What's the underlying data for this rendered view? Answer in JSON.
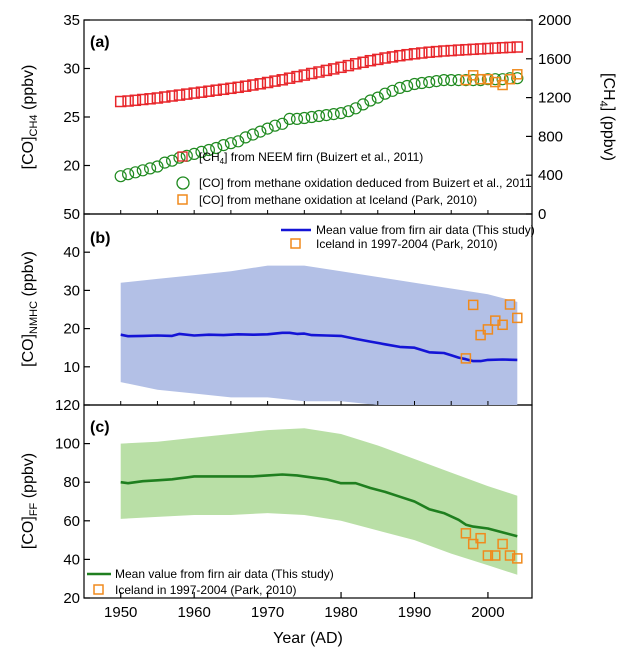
{
  "colors": {
    "ch4": "#e8262b",
    "co_oxidation": "#1f8a1f",
    "iceland": "#f08a1d",
    "nmhc_line": "#1414d6",
    "nmhc_band": "#b3c0e6",
    "ff_line": "#1f7f1f",
    "ff_band": "#b9dfa6"
  },
  "chart_data": [
    {
      "type": "scatter",
      "panel": "(a)",
      "ylabel": "[CO]CH4 (ppbv)",
      "ylabel_main": "[CO]",
      "ylabel_sub": "CH4",
      "ylabel_unit": " (ppbv)",
      "ylim": [
        15,
        35
      ],
      "yticks": [
        20,
        25,
        30,
        35
      ],
      "y2label": "[CH4] (ppbv)",
      "y2label_main": "[CH",
      "y2label_sub": "4",
      "y2label_unit": "] (ppbv)",
      "y2lim": [
        0,
        2000
      ],
      "y2ticks": [
        0,
        400,
        800,
        1200,
        1600,
        2000
      ],
      "legend_position": "bottom-right",
      "series": [
        {
          "name": "[CH4] from NEEM firn (Buizert et al., 2011)",
          "legend_pre": "[CH",
          "legend_sub": "4",
          "legend_post": "] from NEEM firn (Buizert et al., 2011)",
          "marker": "square-open",
          "axis": "right",
          "x": [
            1950,
            1951,
            1952,
            1953,
            1954,
            1955,
            1956,
            1957,
            1958,
            1959,
            1960,
            1961,
            1962,
            1963,
            1964,
            1965,
            1966,
            1967,
            1968,
            1969,
            1970,
            1971,
            1972,
            1973,
            1974,
            1975,
            1976,
            1977,
            1978,
            1979,
            1980,
            1981,
            1982,
            1983,
            1984,
            1985,
            1986,
            1987,
            1988,
            1989,
            1990,
            1991,
            1992,
            1993,
            1994,
            1995,
            1996,
            1997,
            1998,
            1999,
            2000,
            2001,
            2002,
            2003,
            2004
          ],
          "y": [
            1160,
            1165,
            1172,
            1180,
            1188,
            1196,
            1206,
            1216,
            1226,
            1236,
            1246,
            1256,
            1266,
            1276,
            1286,
            1296,
            1306,
            1318,
            1330,
            1342,
            1356,
            1370,
            1384,
            1400,
            1416,
            1432,
            1448,
            1464,
            1480,
            1496,
            1512,
            1530,
            1548,
            1564,
            1580,
            1594,
            1608,
            1620,
            1632,
            1642,
            1652,
            1660,
            1668,
            1674,
            1680,
            1685,
            1690,
            1694,
            1698,
            1702,
            1706,
            1710,
            1714,
            1718,
            1722
          ]
        },
        {
          "name": "[CO] from methane oxidation deduced from Buizert et al., 2011",
          "marker": "circle-open",
          "axis": "left",
          "x": [
            1950,
            1951,
            1952,
            1953,
            1954,
            1955,
            1956,
            1957,
            1958,
            1959,
            1960,
            1961,
            1962,
            1963,
            1964,
            1965,
            1966,
            1967,
            1968,
            1969,
            1970,
            1971,
            1972,
            1973,
            1974,
            1975,
            1976,
            1977,
            1978,
            1979,
            1980,
            1981,
            1982,
            1983,
            1984,
            1985,
            1986,
            1987,
            1988,
            1989,
            1990,
            1991,
            1992,
            1993,
            1994,
            1995,
            1996,
            1997,
            1998,
            1999,
            2000,
            2001,
            2002,
            2003,
            2004
          ],
          "y": [
            18.9,
            19.1,
            19.3,
            19.5,
            19.7,
            19.9,
            20.3,
            20.5,
            20.8,
            21.0,
            21.2,
            21.4,
            21.6,
            21.8,
            22.1,
            22.3,
            22.5,
            22.9,
            23.2,
            23.5,
            23.8,
            24.1,
            24.3,
            24.8,
            24.8,
            24.9,
            25.0,
            25.1,
            25.2,
            25.3,
            25.4,
            25.6,
            25.9,
            26.3,
            26.7,
            27.0,
            27.4,
            27.7,
            28.0,
            28.2,
            28.4,
            28.5,
            28.6,
            28.7,
            28.8,
            28.8,
            28.8,
            28.8,
            28.8,
            28.8,
            28.9,
            28.9,
            28.9,
            29.0,
            29.0
          ]
        },
        {
          "name": "[CO] from methane oxidation at Iceland (Park, 2010)",
          "marker": "square-open",
          "axis": "left",
          "x": [
            1997,
            1998,
            1999,
            2000,
            2001,
            2002,
            2003,
            2004
          ],
          "y": [
            28.8,
            29.3,
            28.9,
            28.9,
            28.6,
            28.3,
            28.9,
            29.4
          ]
        }
      ]
    },
    {
      "type": "line",
      "panel": "(b)",
      "ylabel": "[CO]NMHC (ppbv)",
      "ylabel_main": "[CO]",
      "ylabel_sub": "NMHC",
      "ylabel_unit": " (ppbv)",
      "ylim": [
        0,
        50
      ],
      "yticks": [
        10,
        20,
        30,
        40,
        50
      ],
      "legend_position": "top-right",
      "band": {
        "x": [
          1950,
          1955,
          1960,
          1965,
          1970,
          1975,
          1980,
          1985,
          1990,
          1995,
          2000,
          2004
        ],
        "upper": [
          32,
          33,
          34,
          35,
          36.5,
          36.5,
          35,
          33.5,
          32,
          30.5,
          29,
          27
        ],
        "lower": [
          6,
          4,
          3,
          2,
          2,
          1,
          1,
          0,
          0,
          0,
          0,
          0
        ]
      },
      "series": [
        {
          "name": "Mean value from firn air data (This study)",
          "x": [
            1950,
            1951,
            1953,
            1955,
            1957,
            1958,
            1960,
            1962,
            1964,
            1966,
            1968,
            1970,
            1972,
            1973,
            1974,
            1975,
            1976,
            1978,
            1980,
            1982,
            1984,
            1986,
            1988,
            1990,
            1992,
            1993,
            1994,
            1995,
            1996,
            1997,
            1998,
            1999,
            2000,
            2002,
            2004
          ],
          "y": [
            18.4,
            18.0,
            18.1,
            18.2,
            18.1,
            18.6,
            18.2,
            18.4,
            18.3,
            18.5,
            18.4,
            18.5,
            18.9,
            18.9,
            18.6,
            18.7,
            18.3,
            18.2,
            18.1,
            17.3,
            16.6,
            15.9,
            15.2,
            15.0,
            13.8,
            13.7,
            13.6,
            13.0,
            12.4,
            12.0,
            11.5,
            11.5,
            11.8,
            11.9,
            11.8
          ]
        },
        {
          "name": "Iceland in 1997-2004 (Park, 2010)",
          "marker": "square-open",
          "x": [
            1997,
            1998,
            1999,
            2000,
            2001,
            2002,
            2003,
            2004
          ],
          "y": [
            12.2,
            26.2,
            18.3,
            19.8,
            22.1,
            21.0,
            26.3,
            22.8
          ]
        }
      ]
    },
    {
      "type": "line",
      "panel": "(c)",
      "ylabel": "[CO]FF (ppbv)",
      "ylabel_main": "[CO]",
      "ylabel_sub": "FF",
      "ylabel_unit": " (ppbv)",
      "xlabel": "Year (AD)",
      "xlim": [
        1945,
        2006
      ],
      "xticks": [
        1950,
        1960,
        1970,
        1980,
        1990,
        2000
      ],
      "ylim": [
        20,
        120
      ],
      "yticks": [
        20,
        40,
        60,
        80,
        100,
        120
      ],
      "legend_position": "bottom-left",
      "band": {
        "x": [
          1950,
          1955,
          1960,
          1965,
          1970,
          1975,
          1980,
          1985,
          1990,
          1995,
          2000,
          2004
        ],
        "upper": [
          100,
          101,
          103,
          105,
          107,
          108,
          105,
          99,
          92,
          85,
          78,
          73
        ],
        "lower": [
          61,
          62,
          63,
          63,
          64,
          63,
          60,
          55,
          50,
          43,
          37,
          32
        ]
      },
      "series": [
        {
          "name": "Mean value from firn air data (This study)",
          "x": [
            1950,
            1951,
            1953,
            1955,
            1957,
            1958,
            1959,
            1960,
            1962,
            1964,
            1966,
            1968,
            1970,
            1972,
            1974,
            1976,
            1978,
            1980,
            1982,
            1984,
            1986,
            1988,
            1990,
            1992,
            1994,
            1996,
            1997,
            1998,
            2000,
            2002,
            2004
          ],
          "y": [
            80,
            79.5,
            80.5,
            81,
            81.5,
            82,
            82.5,
            83,
            83,
            83,
            83,
            83,
            83.5,
            84,
            83.5,
            82.5,
            81.5,
            79.5,
            79.5,
            77,
            75,
            72.5,
            70,
            66,
            64,
            60.5,
            58,
            57,
            56,
            54,
            52
          ]
        },
        {
          "name": "Iceland in 1997-2004 (Park, 2010)",
          "marker": "square-open",
          "x": [
            1997,
            1998,
            1999,
            2000,
            2001,
            2002,
            2003,
            2004
          ],
          "y": [
            53.5,
            48,
            51,
            42,
            42,
            48,
            42,
            40.5
          ]
        }
      ]
    }
  ]
}
